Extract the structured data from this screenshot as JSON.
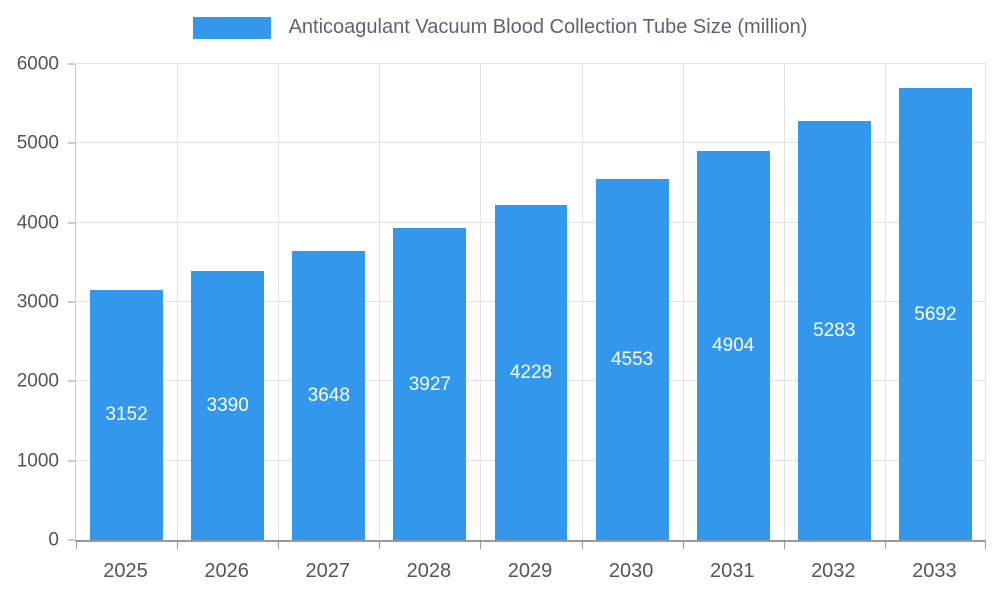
{
  "chart_data": {
    "type": "bar",
    "title": "Anticoagulant Vacuum Blood Collection Tube Size (million)",
    "categories": [
      "2025",
      "2026",
      "2027",
      "2028",
      "2029",
      "2030",
      "2031",
      "2032",
      "2033"
    ],
    "values": [
      3152,
      3390,
      3648,
      3927,
      4228,
      4553,
      4904,
      5283,
      5692
    ],
    "xlabel": "",
    "ylabel": "",
    "ylim": [
      0,
      6000
    ],
    "yticks": [
      0,
      1000,
      2000,
      3000,
      4000,
      5000,
      6000
    ],
    "grid": true,
    "legend_position": "top",
    "bar_color": "#3398eb",
    "bar_label_color": "#ffffff"
  }
}
